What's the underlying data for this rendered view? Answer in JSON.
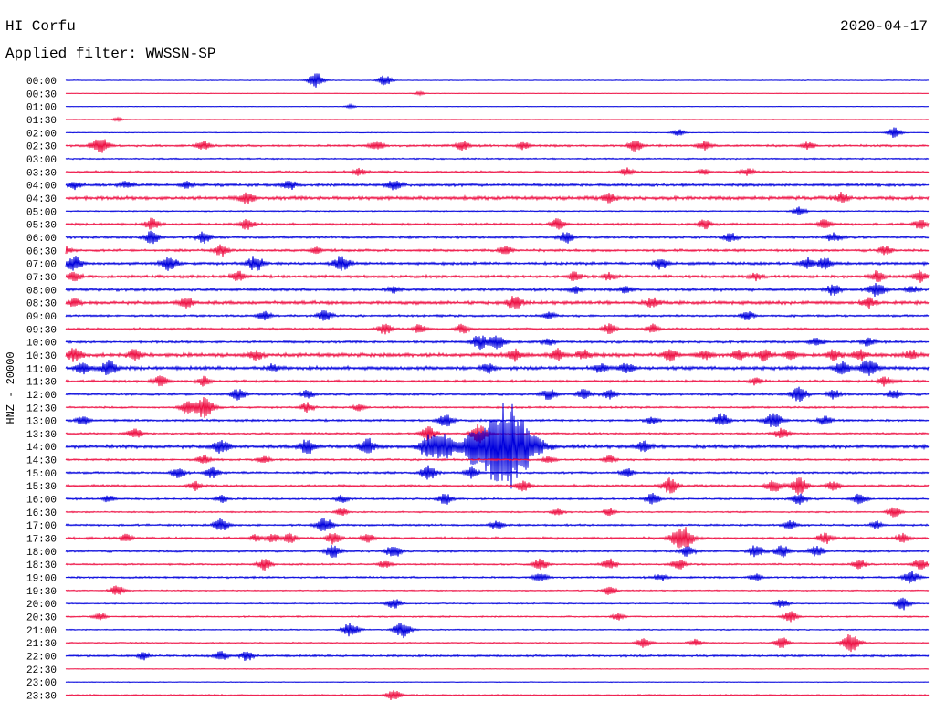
{
  "header": {
    "station": "HI Corfu",
    "date": "2020-04-17",
    "filter": "Applied filter: WWSSN-SP"
  },
  "chart_data": {
    "type": "line",
    "title": "HI Corfu",
    "subtitle": "Applied filter: WWSSN-SP",
    "ylabel": "HNZ - 20000",
    "row_labels": [
      "00:00",
      "00:30",
      "01:00",
      "01:30",
      "02:00",
      "02:30",
      "03:00",
      "03:30",
      "04:00",
      "04:30",
      "05:00",
      "05:30",
      "06:00",
      "06:30",
      "07:00",
      "07:30",
      "08:00",
      "08:30",
      "09:00",
      "09:30",
      "10:00",
      "10:30",
      "11:00",
      "11:30",
      "12:00",
      "12:30",
      "13:00",
      "13:30",
      "14:00",
      "14:30",
      "15:00",
      "15:30",
      "16:00",
      "16:30",
      "17:00",
      "17:30",
      "18:00",
      "18:30",
      "19:00",
      "19:30",
      "20:00",
      "20:30",
      "21:00",
      "21:30",
      "22:00",
      "22:30",
      "23:00",
      "23:30"
    ],
    "trace_colors": [
      "#0000dd",
      "#ee1144"
    ],
    "noise_levels": [
      0.3,
      0.2,
      0.2,
      0.2,
      0.3,
      0.9,
      0.6,
      0.9,
      1.2,
      1.5,
      0.5,
      1.0,
      1.0,
      1.0,
      1.2,
      1.2,
      1.2,
      1.4,
      0.9,
      0.9,
      1.0,
      1.6,
      1.5,
      1.0,
      1.0,
      0.8,
      0.9,
      0.8,
      1.5,
      0.8,
      0.9,
      1.0,
      0.8,
      0.6,
      0.8,
      1.0,
      0.9,
      0.7,
      0.8,
      0.5,
      0.5,
      0.6,
      0.5,
      0.5,
      0.9,
      0.3,
      0.3,
      0.6
    ],
    "events": [
      [
        [
          0.29,
          8
        ],
        [
          0.37,
          6
        ]
      ],
      [
        [
          0.41,
          2
        ]
      ],
      [
        [
          0.33,
          2
        ]
      ],
      [
        [
          0.06,
          2
        ]
      ],
      [
        [
          0.71,
          4
        ],
        [
          0.96,
          6
        ]
      ],
      [
        [
          0.04,
          9
        ],
        [
          0.16,
          5
        ],
        [
          0.36,
          5
        ],
        [
          0.46,
          5
        ],
        [
          0.53,
          4
        ],
        [
          0.66,
          6
        ],
        [
          0.74,
          5
        ],
        [
          0.86,
          4
        ]
      ],
      [],
      [
        [
          0.34,
          4
        ],
        [
          0.65,
          4
        ],
        [
          0.74,
          3
        ],
        [
          0.79,
          4
        ]
      ],
      [
        [
          0.01,
          4
        ],
        [
          0.07,
          4
        ],
        [
          0.14,
          4
        ],
        [
          0.26,
          5
        ],
        [
          0.38,
          6
        ]
      ],
      [
        [
          0.21,
          6
        ],
        [
          0.63,
          5
        ],
        [
          0.9,
          5
        ]
      ],
      [
        [
          0.85,
          5
        ]
      ],
      [
        [
          0.1,
          6
        ],
        [
          0.21,
          6
        ],
        [
          0.57,
          6
        ],
        [
          0.74,
          5
        ],
        [
          0.88,
          5
        ],
        [
          0.99,
          5
        ]
      ],
      [
        [
          0.1,
          7
        ],
        [
          0.16,
          6
        ],
        [
          0.58,
          6
        ],
        [
          0.77,
          5
        ],
        [
          0.89,
          5
        ]
      ],
      [
        [
          0.0,
          4
        ],
        [
          0.18,
          6
        ],
        [
          0.29,
          4
        ],
        [
          0.51,
          5
        ],
        [
          0.95,
          5
        ]
      ],
      [
        [
          0.01,
          8
        ],
        [
          0.12,
          8
        ],
        [
          0.22,
          8
        ],
        [
          0.32,
          8
        ],
        [
          0.69,
          6
        ],
        [
          0.86,
          6
        ],
        [
          0.88,
          6
        ]
      ],
      [
        [
          0.01,
          5
        ],
        [
          0.2,
          6
        ],
        [
          0.59,
          5
        ],
        [
          0.63,
          4
        ],
        [
          0.8,
          4
        ],
        [
          0.94,
          6
        ],
        [
          0.99,
          6
        ]
      ],
      [
        [
          0.38,
          4
        ],
        [
          0.59,
          4
        ],
        [
          0.65,
          4
        ],
        [
          0.89,
          6
        ],
        [
          0.94,
          8
        ],
        [
          0.98,
          4
        ]
      ],
      [
        [
          0.01,
          4
        ],
        [
          0.14,
          6
        ],
        [
          0.52,
          7
        ],
        [
          0.68,
          5
        ],
        [
          0.93,
          5
        ]
      ],
      [
        [
          0.23,
          5
        ],
        [
          0.3,
          6
        ],
        [
          0.56,
          4
        ],
        [
          0.79,
          5
        ]
      ],
      [
        [
          0.37,
          6
        ],
        [
          0.41,
          5
        ],
        [
          0.46,
          5
        ],
        [
          0.63,
          6
        ],
        [
          0.68,
          5
        ]
      ],
      [
        [
          0.48,
          8
        ],
        [
          0.5,
          8
        ],
        [
          0.56,
          4
        ],
        [
          0.87,
          5
        ],
        [
          0.93,
          5
        ]
      ],
      [
        [
          0.01,
          7
        ],
        [
          0.08,
          6
        ],
        [
          0.22,
          5
        ],
        [
          0.52,
          6
        ],
        [
          0.57,
          6
        ],
        [
          0.6,
          5
        ],
        [
          0.7,
          6
        ],
        [
          0.74,
          5
        ],
        [
          0.78,
          5
        ],
        [
          0.81,
          6
        ],
        [
          0.84,
          5
        ],
        [
          0.89,
          6
        ],
        [
          0.92,
          6
        ],
        [
          0.98,
          5
        ]
      ],
      [
        [
          0.02,
          6
        ],
        [
          0.05,
          8
        ],
        [
          0.24,
          4
        ],
        [
          0.49,
          5
        ],
        [
          0.62,
          5
        ],
        [
          0.65,
          6
        ],
        [
          0.9,
          7
        ],
        [
          0.93,
          9
        ]
      ],
      [
        [
          0.11,
          6
        ],
        [
          0.16,
          5
        ],
        [
          0.8,
          4
        ],
        [
          0.95,
          5
        ]
      ],
      [
        [
          0.2,
          6
        ],
        [
          0.28,
          5
        ],
        [
          0.56,
          6
        ],
        [
          0.6,
          6
        ],
        [
          0.63,
          5
        ],
        [
          0.85,
          8
        ],
        [
          0.89,
          5
        ],
        [
          0.96,
          5
        ]
      ],
      [
        [
          0.14,
          6
        ],
        [
          0.16,
          12
        ],
        [
          0.28,
          5
        ],
        [
          0.34,
          4
        ]
      ],
      [
        [
          0.02,
          5
        ],
        [
          0.44,
          7
        ],
        [
          0.68,
          4
        ],
        [
          0.76,
          7
        ],
        [
          0.82,
          9
        ],
        [
          0.88,
          5
        ]
      ],
      [
        [
          0.08,
          6
        ],
        [
          0.42,
          8
        ],
        [
          0.48,
          10
        ],
        [
          0.83,
          6
        ]
      ],
      [
        [
          0.18,
          8
        ],
        [
          0.28,
          8
        ],
        [
          0.35,
          8
        ],
        [
          0.42,
          12
        ],
        [
          0.44,
          14
        ],
        [
          0.47,
          10
        ],
        [
          0.51,
          48
        ],
        [
          0.67,
          6
        ]
      ],
      [
        [
          0.16,
          5
        ],
        [
          0.23,
          4
        ],
        [
          0.56,
          4
        ],
        [
          0.63,
          4
        ]
      ],
      [
        [
          0.13,
          6
        ],
        [
          0.17,
          6
        ],
        [
          0.42,
          8
        ],
        [
          0.47,
          6
        ],
        [
          0.65,
          5
        ]
      ],
      [
        [
          0.15,
          5
        ],
        [
          0.53,
          6
        ],
        [
          0.7,
          8
        ],
        [
          0.82,
          7
        ],
        [
          0.85,
          9
        ],
        [
          0.89,
          5
        ]
      ],
      [
        [
          0.05,
          4
        ],
        [
          0.18,
          4
        ],
        [
          0.32,
          4
        ],
        [
          0.44,
          6
        ],
        [
          0.68,
          6
        ],
        [
          0.85,
          6
        ],
        [
          0.92,
          6
        ]
      ],
      [
        [
          0.32,
          4
        ],
        [
          0.57,
          4
        ],
        [
          0.63,
          4
        ],
        [
          0.96,
          6
        ]
      ],
      [
        [
          0.18,
          7
        ],
        [
          0.3,
          8
        ],
        [
          0.5,
          5
        ],
        [
          0.84,
          5
        ],
        [
          0.94,
          4
        ]
      ],
      [
        [
          0.07,
          4
        ],
        [
          0.22,
          4
        ],
        [
          0.24,
          5
        ],
        [
          0.26,
          5
        ],
        [
          0.31,
          6
        ],
        [
          0.35,
          5
        ],
        [
          0.71,
          9
        ],
        [
          0.72,
          8
        ],
        [
          0.88,
          6
        ],
        [
          0.97,
          5
        ]
      ],
      [
        [
          0.31,
          7
        ],
        [
          0.38,
          7
        ],
        [
          0.72,
          6
        ],
        [
          0.8,
          7
        ],
        [
          0.83,
          7
        ],
        [
          0.87,
          6
        ]
      ],
      [
        [
          0.23,
          6
        ],
        [
          0.37,
          4
        ],
        [
          0.55,
          6
        ],
        [
          0.63,
          6
        ],
        [
          0.71,
          6
        ],
        [
          0.92,
          5
        ],
        [
          0.99,
          6
        ]
      ],
      [
        [
          0.55,
          5
        ],
        [
          0.69,
          4
        ],
        [
          0.8,
          4
        ],
        [
          0.98,
          7
        ]
      ],
      [
        [
          0.06,
          6
        ],
        [
          0.63,
          5
        ]
      ],
      [
        [
          0.38,
          6
        ],
        [
          0.83,
          5
        ],
        [
          0.97,
          7
        ]
      ],
      [
        [
          0.04,
          4
        ],
        [
          0.64,
          4
        ],
        [
          0.84,
          6
        ]
      ],
      [
        [
          0.33,
          8
        ],
        [
          0.39,
          9
        ]
      ],
      [
        [
          0.67,
          6
        ],
        [
          0.73,
          4
        ],
        [
          0.83,
          6
        ],
        [
          0.91,
          10
        ]
      ],
      [
        [
          0.09,
          4
        ],
        [
          0.18,
          5
        ],
        [
          0.21,
          5
        ]
      ],
      [],
      [],
      [
        [
          0.38,
          6
        ]
      ]
    ]
  }
}
